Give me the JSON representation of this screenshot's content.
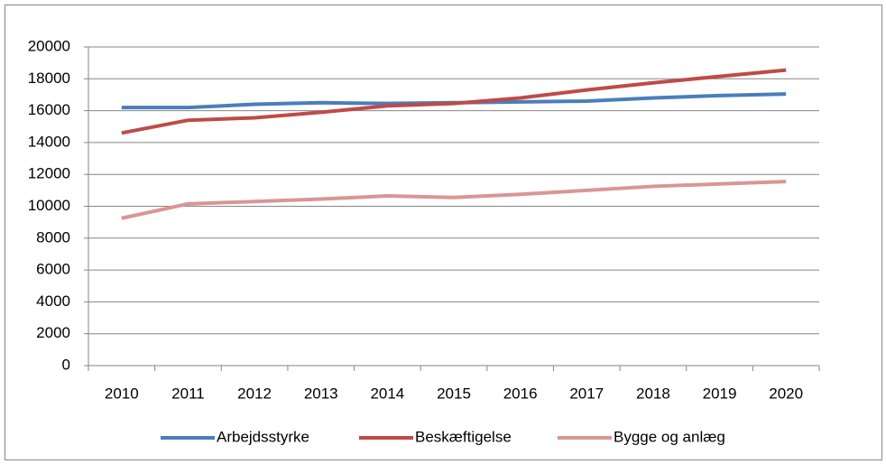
{
  "chart_data": {
    "type": "line",
    "categories": [
      "2010",
      "2011",
      "2012",
      "2013",
      "2014",
      "2015",
      "2016",
      "2017",
      "2018",
      "2019",
      "2020"
    ],
    "series": [
      {
        "name": "Arbejdsstyrke",
        "color": "#4a7ebb",
        "values": [
          16200,
          16200,
          16400,
          16500,
          16450,
          16500,
          16550,
          16600,
          16800,
          16950,
          17050
        ]
      },
      {
        "name": "Beskæftigelse",
        "color": "#be4b48",
        "values": [
          14600,
          15400,
          15550,
          15900,
          16300,
          16450,
          16800,
          17300,
          17750,
          18150,
          18550
        ]
      },
      {
        "name": "Bygge og anlæg",
        "color": "#d99694",
        "values": [
          9250,
          10150,
          10300,
          10450,
          10650,
          10550,
          10750,
          11000,
          11250,
          11400,
          11550
        ]
      }
    ],
    "ylim": [
      0,
      20000
    ],
    "yticks": [
      0,
      2000,
      4000,
      6000,
      8000,
      10000,
      12000,
      14000,
      16000,
      18000,
      20000
    ],
    "grid": true,
    "legend": "bottom"
  }
}
